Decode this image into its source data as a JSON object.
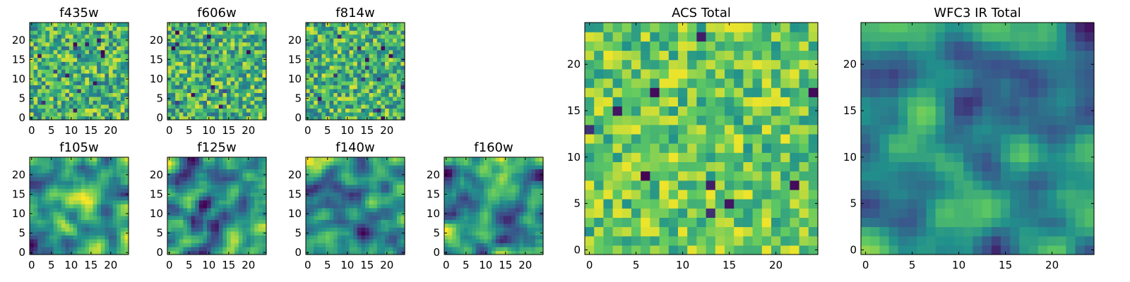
{
  "chart_data": [
    {
      "type": "heatmap",
      "title": "f435w",
      "xticks": [
        "0",
        "5",
        "10",
        "15",
        "20"
      ],
      "yticks": [
        "0",
        "5",
        "10",
        "15",
        "20"
      ],
      "xlim": [
        -0.5,
        24.5
      ],
      "ylim": [
        -0.5,
        24.5
      ],
      "grid_size": 25,
      "colormap": "viridis",
      "character": "noise"
    },
    {
      "type": "heatmap",
      "title": "f606w",
      "xticks": [
        "0",
        "5",
        "10",
        "15",
        "20"
      ],
      "yticks": [
        "0",
        "5",
        "10",
        "15",
        "20"
      ],
      "xlim": [
        -0.5,
        24.5
      ],
      "ylim": [
        -0.5,
        24.5
      ],
      "grid_size": 25,
      "colormap": "viridis",
      "character": "noise"
    },
    {
      "type": "heatmap",
      "title": "f814w",
      "xticks": [
        "0",
        "5",
        "10",
        "15",
        "20"
      ],
      "yticks": [
        "0",
        "5",
        "10",
        "15",
        "20"
      ],
      "xlim": [
        -0.5,
        24.5
      ],
      "ylim": [
        -0.5,
        24.5
      ],
      "grid_size": 25,
      "colormap": "viridis",
      "character": "noise"
    },
    {
      "type": "heatmap",
      "title": "f105w",
      "xticks": [
        "0",
        "5",
        "10",
        "15",
        "20"
      ],
      "yticks": [
        "0",
        "5",
        "10",
        "15",
        "20"
      ],
      "xlim": [
        -0.5,
        24.5
      ],
      "ylim": [
        -0.5,
        24.5
      ],
      "grid_size": 25,
      "colormap": "viridis",
      "character": "smooth"
    },
    {
      "type": "heatmap",
      "title": "f125w",
      "xticks": [
        "0",
        "5",
        "10",
        "15",
        "20"
      ],
      "yticks": [
        "0",
        "5",
        "10",
        "15",
        "20"
      ],
      "xlim": [
        -0.5,
        24.5
      ],
      "ylim": [
        -0.5,
        24.5
      ],
      "grid_size": 25,
      "colormap": "viridis",
      "character": "smooth"
    },
    {
      "type": "heatmap",
      "title": "f140w",
      "xticks": [
        "0",
        "5",
        "10",
        "15",
        "20"
      ],
      "yticks": [
        "0",
        "5",
        "10",
        "15",
        "20"
      ],
      "xlim": [
        -0.5,
        24.5
      ],
      "ylim": [
        -0.5,
        24.5
      ],
      "grid_size": 25,
      "colormap": "viridis",
      "character": "smooth"
    },
    {
      "type": "heatmap",
      "title": "f160w",
      "xticks": [
        "0",
        "5",
        "10",
        "15",
        "20"
      ],
      "yticks": [
        "0",
        "5",
        "10",
        "15",
        "20"
      ],
      "xlim": [
        -0.5,
        24.5
      ],
      "ylim": [
        -0.5,
        24.5
      ],
      "grid_size": 25,
      "colormap": "viridis",
      "character": "smooth"
    },
    {
      "type": "heatmap",
      "title": "ACS Total",
      "xticks": [
        "0",
        "5",
        "10",
        "15",
        "20"
      ],
      "yticks": [
        "0",
        "5",
        "10",
        "15",
        "20"
      ],
      "xlim": [
        -0.5,
        24.5
      ],
      "ylim": [
        -0.5,
        24.5
      ],
      "grid_size": 25,
      "colormap": "viridis",
      "character": "noise-bright"
    },
    {
      "type": "heatmap",
      "title": "WFC3 IR Total",
      "xticks": [
        "0",
        "5",
        "10",
        "15",
        "20"
      ],
      "yticks": [
        "0",
        "5",
        "10",
        "15",
        "20"
      ],
      "xlim": [
        -0.5,
        24.5
      ],
      "ylim": [
        -0.5,
        24.5
      ],
      "grid_size": 25,
      "colormap": "viridis",
      "character": "smooth-dark"
    }
  ],
  "colors": {
    "colormap_stops": [
      "#440154",
      "#3b528b",
      "#21918c",
      "#5ec962",
      "#fde725"
    ],
    "axis": "#000000",
    "background": "#ffffff"
  }
}
